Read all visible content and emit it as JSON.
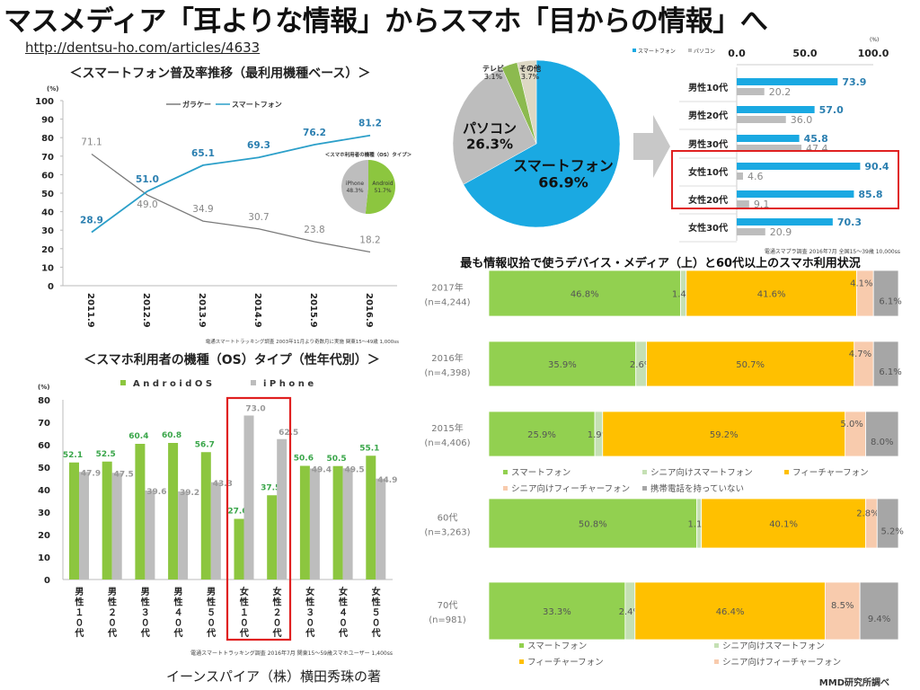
{
  "slide": {
    "title": "マスメディア「耳よりな情報」からスマホ「目からの情報」へ",
    "url": "http://dentsu-ho.com/articles/4633",
    "credit": "イーンスパイア（株）横田秀珠の著"
  },
  "chart_data": [
    {
      "type": "line",
      "title": "＜スマートフォン普及率推移（最利用機種ベース）＞",
      "yunit": "(%)",
      "ylim": [
        0,
        100
      ],
      "yticks": [
        0,
        10,
        20,
        30,
        40,
        50,
        60,
        70,
        80,
        90,
        100
      ],
      "categories": [
        "2011.9",
        "2012.9",
        "2013.9",
        "2014.9",
        "2015.9",
        "2016.9"
      ],
      "series": [
        {
          "name": "ガラケー",
          "values": [
            71.1,
            49.0,
            34.9,
            30.7,
            23.8,
            18.2
          ],
          "color": "#7a7a7a"
        },
        {
          "name": "スマートフォン",
          "values": [
            28.9,
            51.0,
            65.1,
            69.3,
            76.2,
            81.2
          ],
          "color": "#2b9fc9"
        }
      ],
      "legend": "top-center",
      "source": "電通スマートトラッキング調査 2003年11月より奇数月に実施 関東15～49歳 1,000ss"
    },
    {
      "type": "pie",
      "title": "＜スマホ利用者の機種（OS）タイプ＞",
      "slices": [
        {
          "label": "Android",
          "value": 51.7,
          "color": "#8cc63f"
        },
        {
          "label": "iPhone",
          "value": 48.3,
          "color": "#bdbdbd"
        }
      ]
    },
    {
      "type": "bar",
      "title": "＜スマホ利用者の機種（OS）タイプ（性年代別）＞",
      "yunit": "(%)",
      "ylim": [
        0,
        80
      ],
      "yticks": [
        0,
        10,
        20,
        30,
        40,
        50,
        60,
        70,
        80
      ],
      "categories": [
        "男性１０代",
        "男性２０代",
        "男性３０代",
        "男性４０代",
        "男性５０代",
        "女性１０代",
        "女性２０代",
        "女性３０代",
        "女性４０代",
        "女性５０代"
      ],
      "series": [
        {
          "name": "AndroidOS",
          "values": [
            52.1,
            52.5,
            60.4,
            60.8,
            56.7,
            27.0,
            37.5,
            50.6,
            50.5,
            55.1
          ],
          "color": "#8cc63f"
        },
        {
          "name": "iPhone",
          "values": [
            47.9,
            47.5,
            39.6,
            39.2,
            43.3,
            73.0,
            62.5,
            49.4,
            49.5,
            44.9
          ],
          "color": "#bdbdbd"
        }
      ],
      "highlight": [
        "女性１０代",
        "女性２０代"
      ],
      "highlight_color": "#e02020",
      "source": "電通スマートトラッキング調査 2016年7月 関東15～59歳スマホユーザー 1,400ss"
    },
    {
      "type": "pie",
      "slices": [
        {
          "label": "スマートフォン",
          "value": 66.9,
          "color": "#1aa9e2"
        },
        {
          "label": "パソコン",
          "value": 26.3,
          "color": "#bdbdbd"
        },
        {
          "label": "テレビ",
          "value": 3.1,
          "color": "#8cba4f"
        },
        {
          "label": "その他",
          "value": 3.7,
          "color": "#ddd8c4"
        }
      ]
    },
    {
      "type": "bar",
      "orientation": "horizontal",
      "xunit": "(%)",
      "xlim": [
        0,
        100
      ],
      "xticks": [
        0.0,
        50.0,
        100.0
      ],
      "categories": [
        "男性10代",
        "男性20代",
        "男性30代",
        "女性10代",
        "女性20代",
        "女性30代"
      ],
      "series": [
        {
          "name": "スマートフォン",
          "values": [
            73.9,
            57.0,
            45.8,
            90.4,
            85.8,
            70.3
          ],
          "color": "#1aa9e2"
        },
        {
          "name": "パソコン",
          "values": [
            20.2,
            36.0,
            47.4,
            4.6,
            9.1,
            20.9
          ],
          "color": "#bdbdbd"
        }
      ],
      "highlight": [
        "女性10代",
        "女性20代"
      ],
      "highlight_color": "#e02020",
      "source": "電通スマプラ調査 2016年7月 全国15～39歳 10,000ss"
    },
    {
      "type": "bar",
      "orientation": "horizontal-stacked",
      "title": "最も情報収拾で使うデバイス・メディア（上）と60代以上のスマホ利用状況",
      "segments": [
        {
          "name": "スマートフォン",
          "color": "#92d050"
        },
        {
          "name": "シニア向けスマートフォン",
          "color": "#c5e0b4"
        },
        {
          "name": "フィーチャーフォン",
          "color": "#ffc000"
        },
        {
          "name": "シニア向けフィーチャーフォン",
          "color": "#f8cbad"
        },
        {
          "name": "携帯電話を持っていない",
          "color": "#a6a6a6"
        }
      ],
      "rows": [
        {
          "label": "2017年",
          "n": "(n=4,244)",
          "values": [
            46.8,
            1.4,
            41.6,
            4.1,
            6.1
          ]
        },
        {
          "label": "2016年",
          "n": "(n=4,398)",
          "values": [
            35.9,
            2.6,
            50.7,
            4.7,
            6.1
          ]
        },
        {
          "label": "2015年",
          "n": "(n=4,406)",
          "values": [
            25.9,
            1.9,
            59.2,
            5.0,
            8.0
          ]
        },
        {
          "label": "60代",
          "n": "(n=3,263)",
          "values": [
            50.8,
            1.1,
            40.1,
            2.8,
            5.2
          ]
        },
        {
          "label": "70代",
          "n": "(n=981)",
          "values": [
            33.3,
            2.4,
            46.4,
            8.5,
            9.4
          ]
        }
      ],
      "source": "MMD研究所調べ"
    }
  ]
}
